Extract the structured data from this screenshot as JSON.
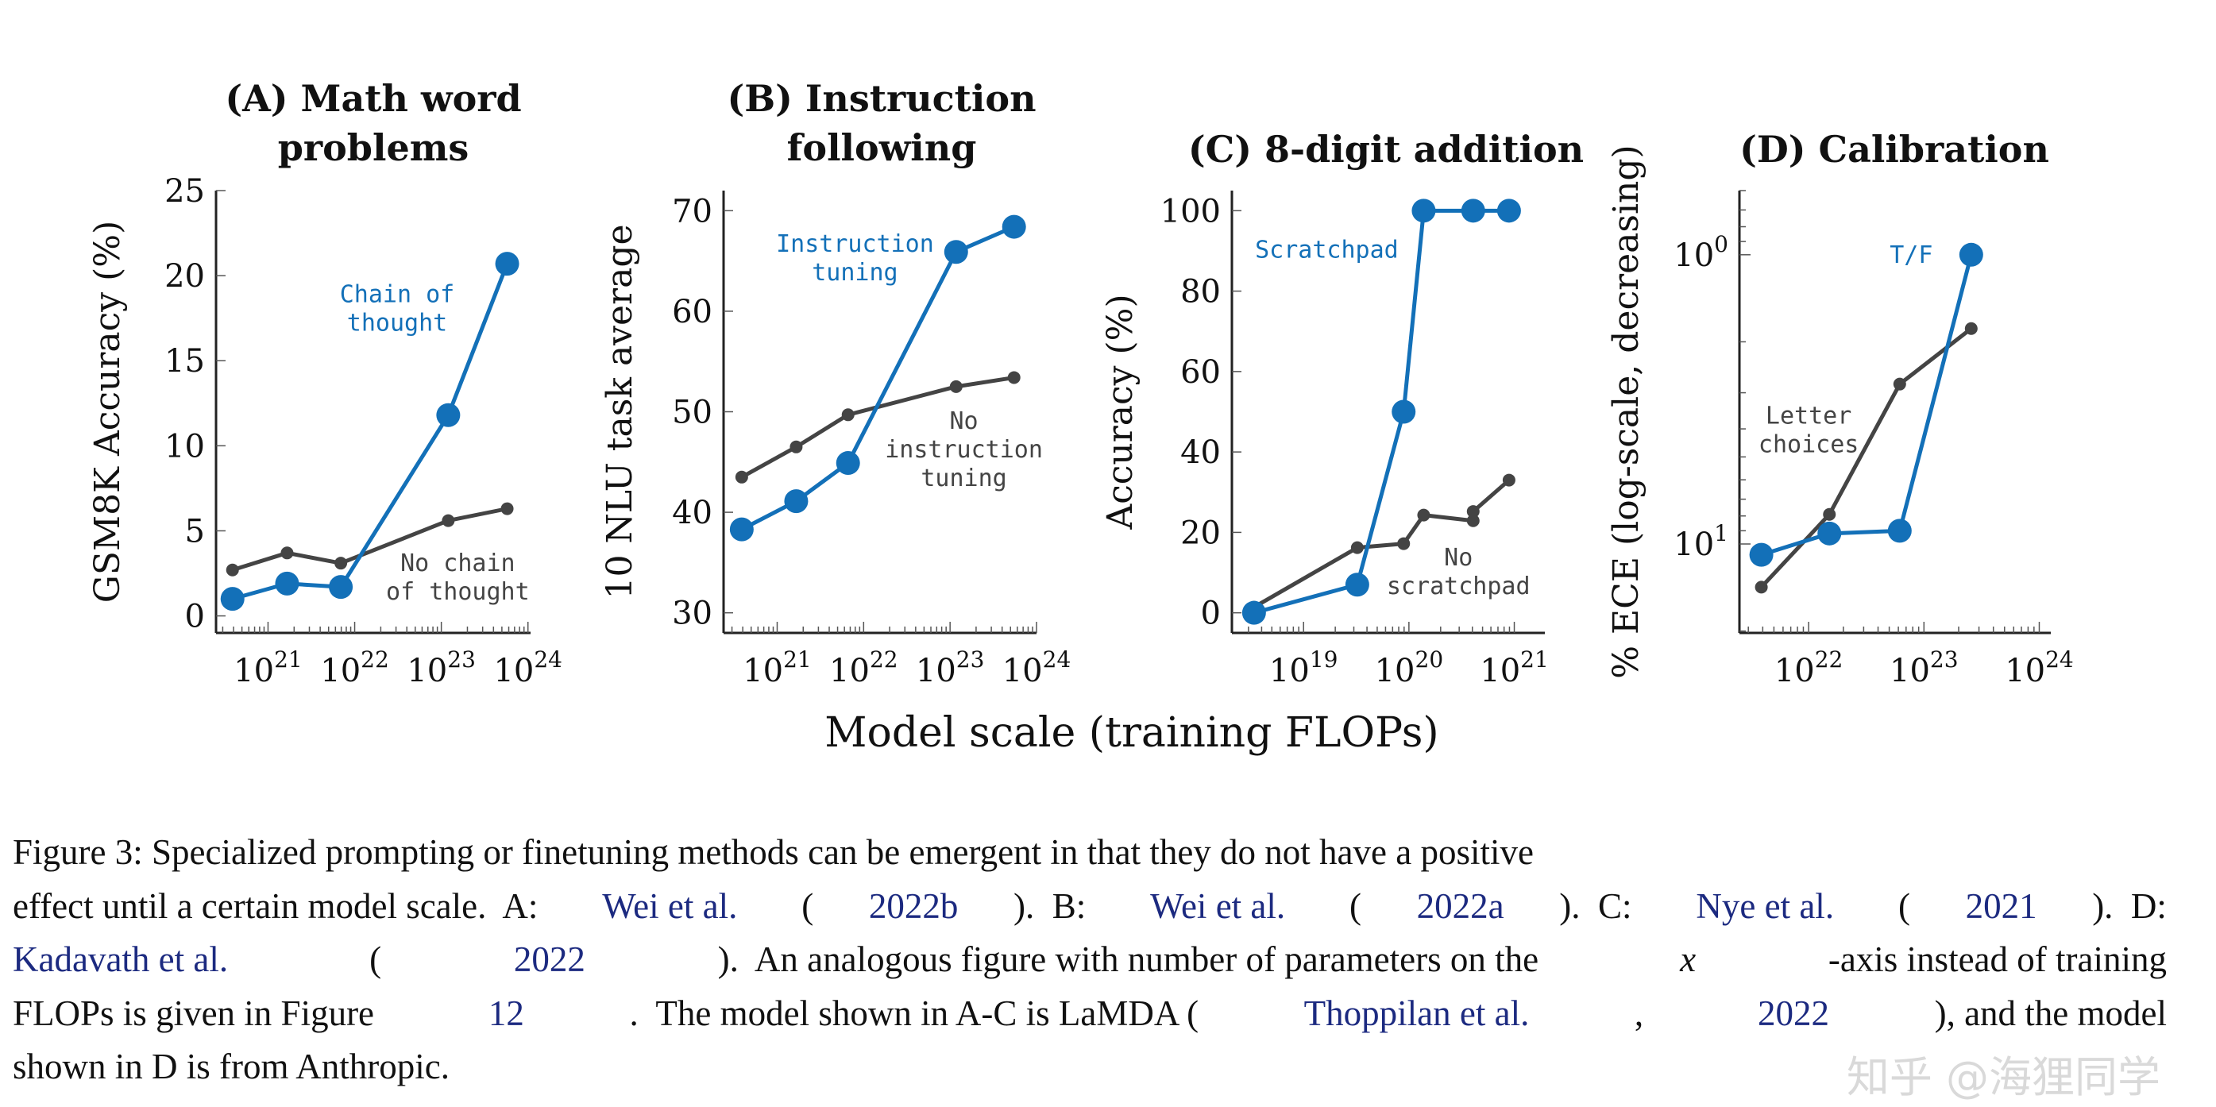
{
  "colors": {
    "blue": "#1370b8",
    "gray": "#444444",
    "link": "#1c2a80"
  },
  "chart_data": [
    {
      "type": "line",
      "title": [
        "(A) Math word",
        "problems"
      ],
      "ylabel": "GSM8K Accuracy (%)",
      "xscale": "log",
      "yscale": "linear",
      "xlim_log10": [
        20.4,
        24.03
      ],
      "ylim": [
        -1,
        25
      ],
      "xticks_exp": [
        21,
        22,
        23,
        24
      ],
      "yticks": [
        0,
        5,
        10,
        15,
        20,
        25
      ],
      "series": [
        {
          "name": "Chain of thought",
          "color": "blue",
          "x_log10": [
            20.59,
            21.22,
            21.84,
            23.08,
            23.76
          ],
          "y": [
            1.0,
            1.9,
            1.7,
            11.8,
            20.7
          ]
        },
        {
          "name": "No chain of thought",
          "color": "gray",
          "x_log10": [
            20.59,
            21.22,
            21.84,
            23.08,
            23.76
          ],
          "y": [
            2.7,
            3.7,
            3.1,
            5.6,
            6.3
          ]
        }
      ],
      "annotations": [
        {
          "lines": [
            "Chain of",
            "thought"
          ],
          "color": "blue",
          "x_log10": 22.49,
          "y": 18.9
        },
        {
          "lines": [
            "No chain",
            "of thought"
          ],
          "color": "gray",
          "x_log10": 23.19,
          "y": 3.1
        }
      ]
    },
    {
      "type": "line",
      "title": [
        "(B) Instruction",
        "following"
      ],
      "ylabel": "10 NLU task average",
      "xscale": "log",
      "yscale": "linear",
      "xlim_log10": [
        20.38,
        24.0
      ],
      "ylim": [
        28,
        72
      ],
      "xticks_exp": [
        21,
        22,
        23,
        24
      ],
      "yticks": [
        30,
        40,
        50,
        60,
        70
      ],
      "series": [
        {
          "name": "Instruction tuning",
          "color": "blue",
          "x_log10": [
            20.59,
            21.22,
            21.82,
            23.07,
            23.74
          ],
          "y": [
            38.3,
            41.1,
            44.9,
            65.9,
            68.4
          ]
        },
        {
          "name": "No instruction tuning",
          "color": "gray",
          "x_log10": [
            20.59,
            21.22,
            21.82,
            23.07,
            23.74
          ],
          "y": [
            43.5,
            46.5,
            49.7,
            52.5,
            53.4
          ]
        }
      ],
      "annotations": [
        {
          "lines": [
            "Instruction",
            "tuning"
          ],
          "color": "blue",
          "x_log10": 21.9,
          "y": 66.7
        },
        {
          "lines": [
            "No",
            "instruction",
            "tuning"
          ],
          "color": "gray",
          "x_log10": 23.16,
          "y": 49.1
        }
      ]
    },
    {
      "type": "line",
      "title": [
        "(C) 8-digit addition"
      ],
      "ylabel": "Accuracy (%)",
      "xscale": "log",
      "yscale": "linear",
      "xlim_log10": [
        18.32,
        21.29
      ],
      "ylim": [
        -5,
        105
      ],
      "xticks_exp": [
        19,
        20,
        21
      ],
      "yticks": [
        0,
        20,
        40,
        60,
        80,
        100
      ],
      "series": [
        {
          "name": "Scratchpad",
          "color": "blue",
          "x_log10": [
            18.53,
            19.51,
            19.95,
            20.14,
            20.61,
            20.95
          ],
          "y": [
            0,
            7,
            50,
            100,
            100,
            100
          ]
        },
        {
          "name": "No scratchpad",
          "color": "gray",
          "x_log10": [
            18.53,
            19.51,
            19.95,
            20.14,
            20.61,
            20.61,
            20.95
          ],
          "y": [
            1.4,
            16.2,
            17.2,
            24.3,
            22.9,
            25.2,
            33
          ]
        }
      ],
      "annotations": [
        {
          "lines": [
            "Scratchpad"
          ],
          "color": "blue",
          "x_log10": 19.22,
          "y": 90.3
        },
        {
          "lines": [
            "No",
            "scratchpad"
          ],
          "color": "gray",
          "x_log10": 20.47,
          "y": 13.8
        }
      ]
    },
    {
      "type": "line",
      "title": [
        "(D) Calibration"
      ],
      "ylabel": "% ECE (log-scale, decreasing)",
      "xscale": "log",
      "yscale": "log",
      "y_reversed": true,
      "xlim_log10": [
        21.4,
        24.1
      ],
      "ylim": [
        0.6,
        20.3
      ],
      "xticks_exp": [
        22,
        23,
        24
      ],
      "yticks_exp": [
        0,
        1
      ],
      "series": [
        {
          "name": "T/F",
          "color": "blue",
          "x_log10": [
            21.59,
            22.18,
            22.79,
            23.41
          ],
          "y": [
            10.9,
            9.2,
            9.0,
            1.0
          ]
        },
        {
          "name": "Letter choices",
          "color": "gray",
          "x_log10": [
            21.59,
            22.18,
            22.79,
            23.41
          ],
          "y": [
            14.1,
            7.9,
            2.8,
            1.8
          ]
        }
      ],
      "annotations": [
        {
          "lines": [
            "T/F"
          ],
          "color": "blue",
          "x_log10": 22.89,
          "y": 1.0
        },
        {
          "lines": [
            "Letter",
            "choices"
          ],
          "color": "gray",
          "x_log10": 22.0,
          "y": 3.6
        }
      ]
    }
  ],
  "xlabel": "Model scale (training FLOPs)",
  "tick_base": "10",
  "caption": [
    [
      {
        "t": "Figure 3: Specialized prompting or finetuning methods can be emergent in that they do not have a positive"
      }
    ],
    [
      {
        "t": "effect until a certain model scale.  A: "
      },
      {
        "t": "Wei et al.",
        "link": true
      },
      {
        "t": " ("
      },
      {
        "t": "2022b",
        "link": true
      },
      {
        "t": ").  B: "
      },
      {
        "t": "Wei et al.",
        "link": true
      },
      {
        "t": " ("
      },
      {
        "t": "2022a",
        "link": true
      },
      {
        "t": ").  C: "
      },
      {
        "t": "Nye et al.",
        "link": true
      },
      {
        "t": " ("
      },
      {
        "t": "2021",
        "link": true
      },
      {
        "t": ").  D:"
      }
    ],
    [
      {
        "t": "Kadavath et al.",
        "link": true
      },
      {
        "t": " ("
      },
      {
        "t": "2022",
        "link": true
      },
      {
        "t": ").  An analogous figure with number of parameters on the "
      },
      {
        "t": "x",
        "it": true
      },
      {
        "t": "-axis instead of training"
      }
    ],
    [
      {
        "t": "FLOPs is given in Figure "
      },
      {
        "t": "12",
        "link": true
      },
      {
        "t": ".  The model shown in A-C is LaMDA ("
      },
      {
        "t": "Thoppilan et al.",
        "link": true
      },
      {
        "t": ", "
      },
      {
        "t": "2022",
        "link": true
      },
      {
        "t": "), and the model"
      }
    ],
    [
      {
        "t": "shown in D is from Anthropic."
      }
    ]
  ],
  "watermark": "知乎 @海狸同学"
}
